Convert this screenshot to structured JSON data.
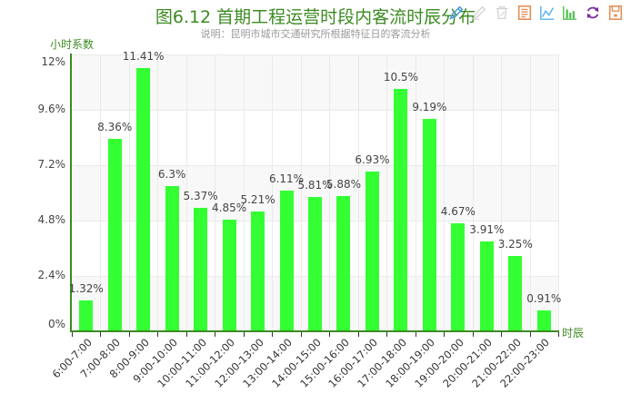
{
  "header": {
    "title": "图6.12  首期工程运营时段内客流时辰分布",
    "subtitle": "说明：昆明市城市交通研究所根据特征日的客流分析"
  },
  "toolbox": [
    {
      "name": "mark-icon",
      "color": "#3e98e8"
    },
    {
      "name": "mark-undo-icon",
      "color": "#d0d0d0"
    },
    {
      "name": "mark-clear-icon",
      "color": "#d0d0d0"
    },
    {
      "name": "data-view-icon",
      "color": "#e2915a"
    },
    {
      "name": "line-chart-icon",
      "color": "#5ab1ef"
    },
    {
      "name": "bar-chart-icon",
      "color": "#4fc14f"
    },
    {
      "name": "restore-icon",
      "color": "#7a2a9a"
    },
    {
      "name": "save-image-icon",
      "color": "#e2915a"
    }
  ],
  "colors": {
    "bar": "#33ff33",
    "axis": "#3c8b22",
    "title": "#3c8b22"
  },
  "chart_data": {
    "type": "bar",
    "title": "图6.12  首期工程运营时段内客流时辰分布",
    "subtitle": "说明：昆明市城市交通研究所根据特征日的客流分析",
    "xlabel": "时辰",
    "ylabel": "小时系数",
    "categories": [
      "6:00-7:00",
      "7:00-8:00",
      "8:00-9:00",
      "9:00-10:00",
      "10:00-11:00",
      "11:00-12:00",
      "12:00-13:00",
      "13:00-14:00",
      "14:00-15:00",
      "15:00-16:00",
      "16:00-17:00",
      "17:00-18:00",
      "18:00-19:00",
      "19:00-20:00",
      "20:00-21:00",
      "21:00-22:00",
      "22:00-23:00"
    ],
    "values": [
      1.32,
      8.36,
      11.41,
      6.3,
      5.37,
      4.85,
      5.21,
      6.11,
      5.81,
      5.88,
      6.93,
      10.5,
      9.19,
      4.67,
      3.91,
      3.25,
      0.91
    ],
    "data_labels": [
      "1.32%",
      "8.36%",
      "11.41%",
      "6.3%",
      "5.37%",
      "4.85%",
      "5.21%",
      "6.11%",
      "5.81%",
      "5.88%",
      "6.93%",
      "10.5%",
      "9.19%",
      "4.67%",
      "3.91%",
      "3.25%",
      "0.91%"
    ],
    "yticks": [
      "0%",
      "2.4%",
      "4.8%",
      "7.2%",
      "9.6%",
      "12%"
    ],
    "ylim": [
      0,
      12
    ],
    "grid": true,
    "legend": null
  }
}
